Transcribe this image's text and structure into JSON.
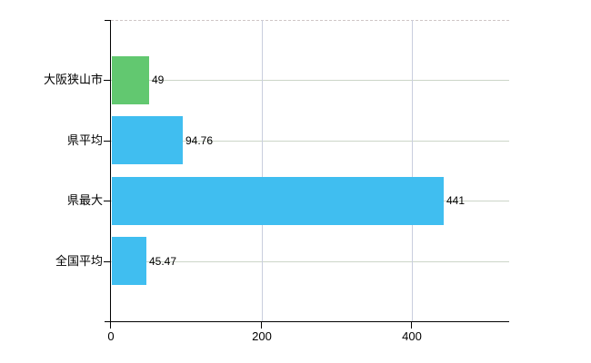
{
  "chart_data": {
    "type": "bar",
    "orientation": "horizontal",
    "title": "",
    "xlabel": "",
    "ylabel": "",
    "categories": [
      "大阪狭山市",
      "県平均",
      "県最大",
      "全国平均"
    ],
    "values": [
      49,
      94.76,
      441,
      45.47
    ],
    "value_labels": [
      "49",
      "94.76",
      "441",
      "45.47"
    ],
    "xlim": [
      0,
      529
    ],
    "xticks": [
      0,
      200,
      400
    ],
    "xtick_labels": [
      "0",
      "200",
      "400"
    ],
    "grid": true,
    "legend": false,
    "bar_colors": [
      "#62c870",
      "#40bef0",
      "#40bef0",
      "#40bef0"
    ],
    "colors": {
      "green_bar": "#62c870",
      "blue_bar": "#40bef0",
      "axis": "#000000",
      "h_gridline": "#ccd5c8",
      "v_gridline": "#c9cede",
      "top_border_dashed": "#cfc6c6",
      "background": "#ffffff"
    }
  }
}
